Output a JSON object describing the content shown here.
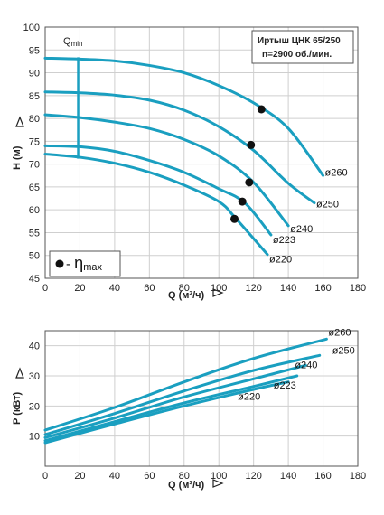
{
  "chart_data": [
    {
      "type": "line",
      "title": "Иртыш ЦНК 65/250",
      "subtitle": "n=2900 об./мин.",
      "xlabel": "Q (м³/ч)",
      "ylabel": "H (м)",
      "xlim": [
        0,
        180
      ],
      "ylim": [
        45,
        100
      ],
      "x_ticks": [
        "0",
        "20",
        "40",
        "60",
        "80",
        "100",
        "120",
        "140",
        "160",
        "180"
      ],
      "y_ticks": [
        "45",
        "50",
        "55",
        "60",
        "65",
        "70",
        "75",
        "80",
        "85",
        "90",
        "95",
        "100"
      ],
      "grid": true,
      "qmin_label": "Q",
      "qmin_sub": "min",
      "qmin_x": 19,
      "legend_label": "η",
      "legend_sub": "max",
      "legend_prefix": "- ",
      "series": [
        {
          "name": "ø260",
          "points": [
            [
              0,
              93.2
            ],
            [
              20,
              93.0
            ],
            [
              40,
              92.6
            ],
            [
              60,
              91.6
            ],
            [
              80,
              90.0
            ],
            [
              100,
              87.2
            ],
            [
              120,
              83.4
            ],
            [
              140,
              77.8
            ],
            [
              160,
              67.5
            ]
          ],
          "eta_max": [
            124.5,
            82.0
          ]
        },
        {
          "name": "ø250",
          "points": [
            [
              0,
              85.8
            ],
            [
              20,
              85.6
            ],
            [
              40,
              85.1
            ],
            [
              60,
              84.0
            ],
            [
              80,
              81.8
            ],
            [
              100,
              78.2
            ],
            [
              120,
              73.0
            ],
            [
              140,
              65.8
            ],
            [
              155,
              61.5
            ]
          ],
          "eta_max": [
            118.5,
            74.2
          ]
        },
        {
          "name": "ø240",
          "points": [
            [
              0,
              80.8
            ],
            [
              20,
              80.2
            ],
            [
              40,
              79.2
            ],
            [
              60,
              77.8
            ],
            [
              80,
              75.4
            ],
            [
              100,
              71.8
            ],
            [
              120,
              66.0
            ],
            [
              140,
              56.5
            ]
          ],
          "eta_max": [
            117.5,
            66.0
          ]
        },
        {
          "name": "ø223",
          "points": [
            [
              0,
              74.0
            ],
            [
              20,
              73.8
            ],
            [
              40,
              72.8
            ],
            [
              60,
              70.8
            ],
            [
              80,
              68.2
            ],
            [
              100,
              64.6
            ],
            [
              115,
              61.5
            ],
            [
              130,
              54.5
            ]
          ],
          "eta_max": [
            113.5,
            61.8
          ]
        },
        {
          "name": "ø220",
          "points": [
            [
              0,
              72.2
            ],
            [
              20,
              71.5
            ],
            [
              40,
              70.2
            ],
            [
              60,
              68.2
            ],
            [
              80,
              65.4
            ],
            [
              100,
              61.8
            ],
            [
              110,
              58.0
            ],
            [
              128,
              50.2
            ]
          ],
          "eta_max": [
            109.0,
            58.0
          ]
        }
      ]
    },
    {
      "type": "line",
      "xlabel": "Q (м³/ч)",
      "ylabel": "P (кВт)",
      "xlim": [
        0,
        180
      ],
      "ylim": [
        0,
        45
      ],
      "x_ticks": [
        "0",
        "20",
        "40",
        "60",
        "80",
        "100",
        "120",
        "140",
        "160",
        "180"
      ],
      "y_ticks": [
        "10",
        "20",
        "30",
        "40"
      ],
      "grid": true,
      "series": [
        {
          "name": "ø260",
          "points": [
            [
              0,
              12.0
            ],
            [
              40,
              19.5
            ],
            [
              80,
              28.0
            ],
            [
              120,
              35.8
            ],
            [
              162,
              42.2
            ]
          ]
        },
        {
          "name": "ø250",
          "points": [
            [
              0,
              10.5
            ],
            [
              40,
              17.5
            ],
            [
              80,
              25.0
            ],
            [
              120,
              31.8
            ],
            [
              158,
              36.8
            ]
          ]
        },
        {
          "name": "ø240",
          "points": [
            [
              0,
              9.5
            ],
            [
              40,
              16.0
            ],
            [
              80,
              23.0
            ],
            [
              120,
              29.0
            ],
            [
              150,
              33.5
            ]
          ]
        },
        {
          "name": "ø223",
          "points": [
            [
              0,
              8.5
            ],
            [
              40,
              14.8
            ],
            [
              80,
              21.0
            ],
            [
              120,
              26.5
            ],
            [
              145,
              30.0
            ]
          ]
        },
        {
          "name": "ø220",
          "points": [
            [
              0,
              7.8
            ],
            [
              40,
              14.0
            ],
            [
              80,
              20.0
            ],
            [
              120,
              25.5
            ],
            [
              140,
              28.0
            ]
          ]
        }
      ]
    }
  ]
}
